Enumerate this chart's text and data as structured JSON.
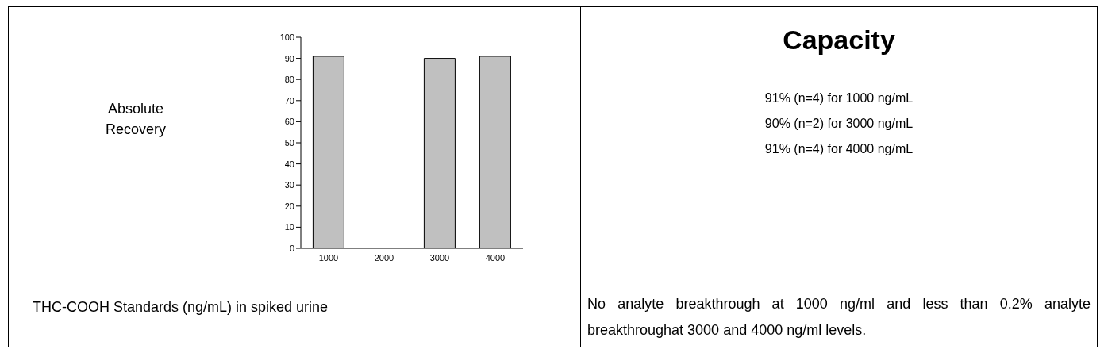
{
  "chart_data": [
    {
      "type": "bar",
      "ylabel": "Absolute Recovery",
      "xlabel": "THC-COOH Standards (ng/mL) in spiked urine",
      "categories": [
        "1000",
        "2000",
        "3000",
        "4000"
      ],
      "values": [
        91,
        null,
        90,
        91
      ],
      "color": "#c0c0c0",
      "ylim": [
        0,
        100
      ],
      "yticks": [
        0,
        10,
        20,
        30,
        40,
        50,
        60,
        70,
        80,
        90,
        100
      ],
      "grid": false
    },
    {
      "type": "other",
      "title": "Capacity",
      "annotations": [
        "91% (n=4) for 1000 ng/mL",
        "90% (n=2) for 3000 ng/mL",
        "91% (n=4) for 4000 ng/mL",
        "No analyte breakthrough at 1000 ng/ml and less than 0.2% analyte breakthroughat 3000 and 4000 ng/ml levels."
      ]
    }
  ]
}
